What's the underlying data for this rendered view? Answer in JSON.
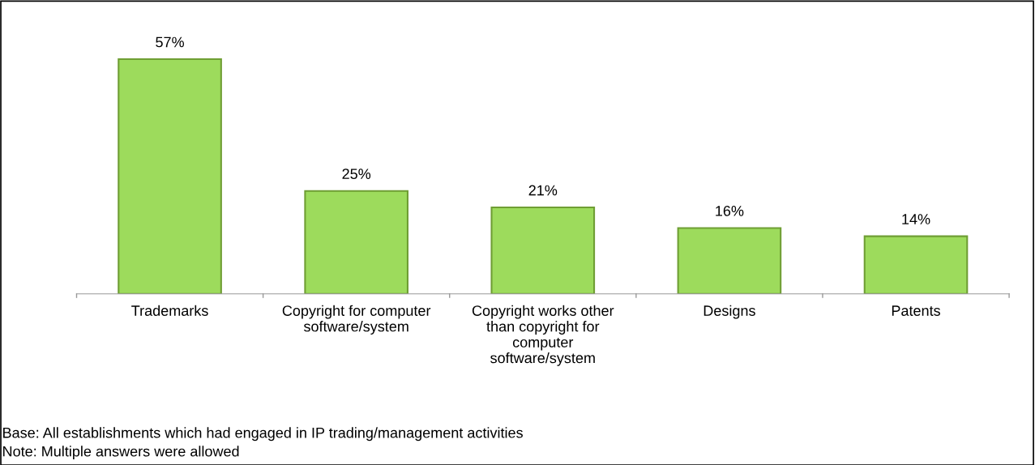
{
  "chart_data": {
    "type": "bar",
    "categories": [
      "Trademarks",
      "Copyright for computer\nsoftware/system",
      "Copyright works other\nthan copyright for\ncomputer\nsoftware/system",
      "Designs",
      "Patents"
    ],
    "values": [
      57,
      25,
      21,
      16,
      14
    ],
    "value_labels": [
      "57%",
      "25%",
      "21%",
      "16%",
      "14%"
    ],
    "color": "#9ddb5c",
    "annotations": [
      "Base: All establishments which had engaged in IP trading/management activities",
      "Note: Multiple answers were allowed"
    ],
    "grid": false,
    "legend": false
  }
}
